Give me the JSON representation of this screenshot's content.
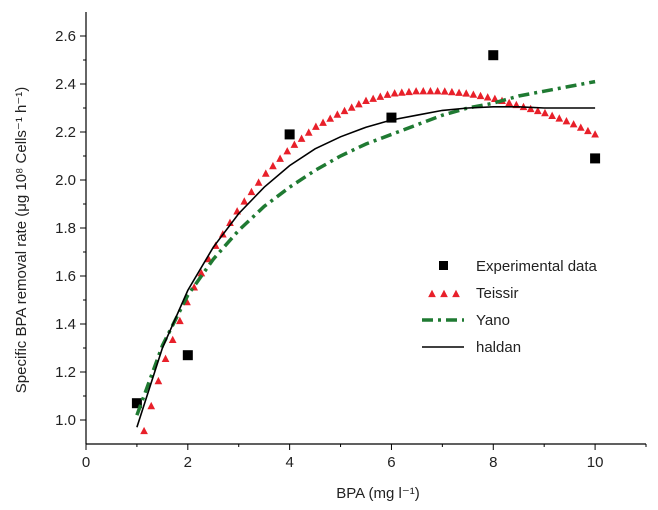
{
  "chart_data": {
    "type": "scatter",
    "xlabel": "BPA (mg l⁻¹)",
    "ylabel": "Specific BPA removal rate  (μg 10⁸ Cells⁻¹ h⁻¹)",
    "xlim": [
      0,
      11
    ],
    "ylim": [
      0.9,
      2.7
    ],
    "x_ticks": [
      0,
      2,
      4,
      6,
      8,
      10
    ],
    "y_ticks": [
      1.0,
      1.2,
      1.4,
      1.6,
      1.8,
      2.0,
      2.2,
      2.4,
      2.6
    ],
    "grid": false,
    "legend_position": "center-right",
    "series": [
      {
        "name": "Experimental data",
        "style": "square-markers",
        "color": "#000000",
        "x": [
          1,
          2,
          4,
          6,
          8,
          10
        ],
        "y": [
          1.07,
          1.27,
          2.19,
          2.26,
          2.52,
          2.09
        ]
      },
      {
        "name": "Teissir",
        "style": "triangle-markers",
        "color": "#e8202a",
        "x": [
          1.0,
          1.5,
          2.0,
          2.5,
          3.0,
          3.5,
          4.0,
          4.5,
          5.0,
          5.5,
          6.0,
          6.5,
          7.0,
          7.5,
          8.0,
          8.5,
          9.0,
          9.5,
          10.0
        ],
        "y": [
          0.85,
          1.22,
          1.5,
          1.71,
          1.88,
          2.02,
          2.13,
          2.22,
          2.28,
          2.33,
          2.36,
          2.37,
          2.37,
          2.36,
          2.34,
          2.31,
          2.28,
          2.24,
          2.19
        ]
      },
      {
        "name": "Yano",
        "style": "dash-dot",
        "color": "#1f7a32",
        "x": [
          1.0,
          1.5,
          2.0,
          2.5,
          3.0,
          3.5,
          4.0,
          4.5,
          5.0,
          5.5,
          6.0,
          6.5,
          7.0,
          7.5,
          8.0,
          8.5,
          9.0,
          9.5,
          10.0
        ],
        "y": [
          1.02,
          1.31,
          1.52,
          1.67,
          1.79,
          1.89,
          1.97,
          2.04,
          2.1,
          2.15,
          2.19,
          2.23,
          2.27,
          2.3,
          2.32,
          2.35,
          2.37,
          2.39,
          2.41
        ]
      },
      {
        "name": "haldan",
        "style": "solid-line",
        "color": "#000000",
        "x": [
          1.0,
          1.5,
          2.0,
          2.5,
          3.0,
          3.5,
          4.0,
          4.5,
          5.0,
          5.5,
          6.0,
          6.5,
          7.0,
          7.5,
          8.0,
          8.5,
          9.0,
          9.5,
          10.0
        ],
        "y": [
          0.97,
          1.3,
          1.54,
          1.72,
          1.86,
          1.97,
          2.06,
          2.13,
          2.18,
          2.22,
          2.25,
          2.27,
          2.29,
          2.3,
          2.305,
          2.305,
          2.3,
          2.3,
          2.3
        ]
      }
    ]
  }
}
